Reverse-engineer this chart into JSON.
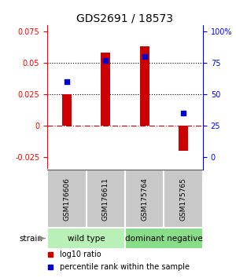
{
  "title": "GDS2691 / 18573",
  "samples": [
    "GSM176606",
    "GSM176611",
    "GSM175764",
    "GSM175765"
  ],
  "log10_ratio": [
    0.025,
    0.058,
    0.063,
    -0.02
  ],
  "percentile_rank_pct": [
    60,
    77,
    80,
    35
  ],
  "groups": [
    {
      "name": "wild type",
      "samples": [
        0,
        1
      ],
      "color": "#b8f0b8"
    },
    {
      "name": "dominant negative",
      "samples": [
        2,
        3
      ],
      "color": "#88dd88"
    }
  ],
  "ylim": [
    -0.035,
    0.08
  ],
  "yticks_left": [
    -0.025,
    0,
    0.025,
    0.05,
    0.075
  ],
  "ytick_labels_left": [
    "-0.025",
    "0",
    "0.025",
    "0.05",
    "0.075"
  ],
  "yticks_right_vals": [
    -0.025,
    0,
    0.025,
    0.05,
    0.075
  ],
  "ytick_labels_right": [
    "0",
    "25",
    "50",
    "75",
    "100%"
  ],
  "bar_color": "#cc0000",
  "dot_color": "#0000cc",
  "dotted_line_vals": [
    0.025,
    0.05
  ],
  "bar_width": 0.25,
  "dot_size": 25,
  "title_fontsize": 10,
  "tick_fontsize": 7,
  "sample_label_fontsize": 6.5,
  "group_label_fontsize": 7.5,
  "legend_fontsize": 7,
  "strain_label": "strain",
  "legend_items": [
    {
      "label": "log10 ratio",
      "color": "#cc0000"
    },
    {
      "label": "percentile rank within the sample",
      "color": "#0000cc"
    }
  ]
}
